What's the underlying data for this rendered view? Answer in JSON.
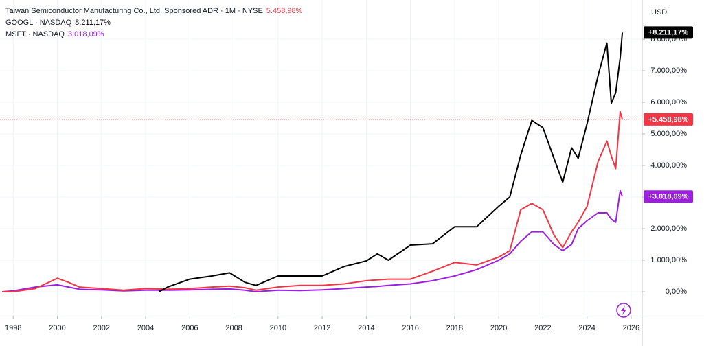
{
  "chart_data": {
    "type": "line",
    "currency": "USD",
    "x": [
      1997.5,
      1998,
      1999,
      2000,
      2000.5,
      2001,
      2002,
      2003,
      2004,
      2004.6,
      2005,
      2006,
      2007,
      2007.8,
      2008.5,
      2009,
      2010,
      2011,
      2012,
      2013,
      2014,
      2014.5,
      2015,
      2016,
      2017,
      2018,
      2019,
      2020,
      2020.5,
      2021,
      2021.5,
      2022,
      2022.5,
      2022.9,
      2023.3,
      2023.6,
      2024,
      2024.5,
      2024.9,
      2025.1,
      2025.3,
      2025.5,
      2025.6
    ],
    "xlim": [
      1997.4,
      2026.5
    ],
    "xticks": [
      1998,
      2000,
      2002,
      2004,
      2006,
      2008,
      2010,
      2012,
      2014,
      2016,
      2018,
      2020,
      2022,
      2024,
      2026
    ],
    "ylim": [
      -760,
      9240
    ],
    "yticks": [
      {
        "value": 0,
        "label": "0,00%"
      },
      {
        "value": 1000,
        "label": "1.000,00%"
      },
      {
        "value": 2000,
        "label": "2.000,00%"
      },
      {
        "value": 3000,
        "label": "3.000,00%"
      },
      {
        "value": 4000,
        "label": "4.000,00%"
      },
      {
        "value": 5000,
        "label": "5.000,00%"
      },
      {
        "value": 6000,
        "label": "6.000,00%"
      },
      {
        "value": 7000,
        "label": "7.000,00%"
      },
      {
        "value": 8000,
        "label": "8.000,00%"
      }
    ],
    "series": [
      {
        "name": "Taiwan Semiconductor Manufacturing Co., Ltd. Sponsored ADR · 1M · NYSE",
        "color": "#f23645",
        "last_label": "5.458,98%",
        "price_label": "+5.458,98%",
        "price_line": true,
        "values": [
          0,
          0,
          100,
          430,
          300,
          150,
          100,
          50,
          100,
          90,
          80,
          100,
          150,
          180,
          130,
          50,
          150,
          200,
          200,
          250,
          350,
          380,
          400,
          400,
          650,
          930,
          850,
          1100,
          1300,
          2600,
          2800,
          2600,
          1800,
          1400,
          1900,
          2200,
          2700,
          4120,
          4770,
          4300,
          3900,
          5700,
          5458.98
        ]
      },
      {
        "name": "GOOGL · NASDAQ",
        "color": "#000000",
        "last_label": "8.211,17%",
        "price_label": "+8.211,17%",
        "values": [
          null,
          null,
          null,
          null,
          null,
          null,
          null,
          null,
          null,
          0,
          150,
          400,
          500,
          600,
          300,
          200,
          500,
          500,
          500,
          800,
          980,
          1200,
          1000,
          1480,
          1520,
          2060,
          2060,
          2710,
          3000,
          4340,
          5430,
          5200,
          4230,
          3470,
          4560,
          4230,
          5320,
          6840,
          7880,
          5970,
          6300,
          7400,
          8211.17
        ]
      },
      {
        "name": "MSFT · NASDAQ",
        "color": "#9c1fe0",
        "last_label": "3.018,09%",
        "price_label": "+3.018,09%",
        "values": [
          0,
          30,
          150,
          220,
          150,
          80,
          60,
          30,
          50,
          50,
          50,
          60,
          80,
          90,
          50,
          0,
          50,
          40,
          60,
          100,
          150,
          170,
          200,
          250,
          350,
          500,
          700,
          1000,
          1200,
          1600,
          1900,
          1900,
          1500,
          1300,
          1500,
          2000,
          2250,
          2500,
          2500,
          2300,
          2200,
          3200,
          3018.09
        ]
      }
    ]
  }
}
